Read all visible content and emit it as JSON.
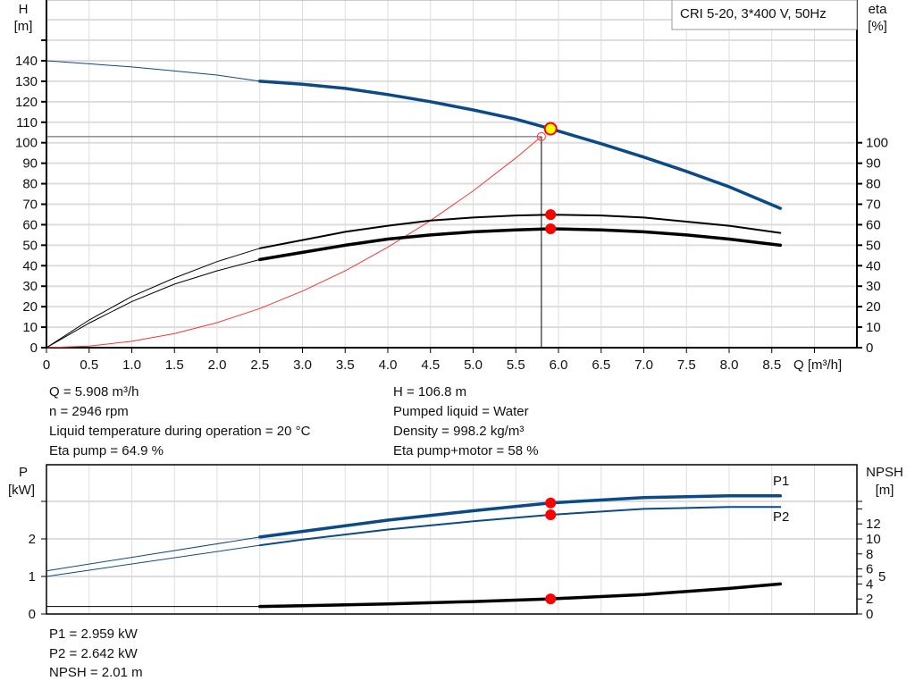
{
  "title_box": "CRI 5-20, 3*400 V, 50Hz",
  "colors": {
    "head": "#0a4a86",
    "eta": "#000000",
    "system": "#ff3333",
    "point": "#ff0000",
    "duty_point_fill": "#ffff00",
    "power": "#0a4a86",
    "npsh": "#000000",
    "grid": "#dddddd"
  },
  "info_left": [
    "Q = 5.908 m³/h",
    "n = 2946 rpm",
    "Liquid temperature during operation = 20 °C",
    "Eta pump = 64.9 %"
  ],
  "info_right": [
    "H = 106.8 m",
    "Pumped liquid = Water",
    "Density = 998.2 kg/m³",
    "Eta pump+motor = 58 %"
  ],
  "info_bottom": [
    "P1 = 2.959 kW",
    "P2 = 2.642 kW",
    "NPSH = 2.01 m"
  ],
  "chart_data": [
    {
      "type": "line",
      "xlabel": "Q [m³/h]",
      "ylabel_left": [
        "H",
        "[m]"
      ],
      "ylabel_right": [
        "eta",
        "[%]"
      ],
      "xlim": [
        0,
        9.5
      ],
      "ylim": [
        0,
        170
      ],
      "x_ticks": [
        "0",
        "0.5",
        "1.0",
        "1.5",
        "2.0",
        "2.5",
        "3.0",
        "3.5",
        "4.0",
        "4.5",
        "5.0",
        "5.5",
        "6.0",
        "6.5",
        "7.0",
        "7.5",
        "8.0",
        "8.5"
      ],
      "y_ticks_left": [
        "0",
        "10",
        "20",
        "30",
        "40",
        "50",
        "60",
        "70",
        "80",
        "90",
        "100",
        "110",
        "120",
        "130",
        "140"
      ],
      "y_ticks_right": [
        "0",
        "10",
        "20",
        "30",
        "40",
        "50",
        "60",
        "70",
        "80",
        "90",
        "100"
      ],
      "grid": true,
      "series": [
        {
          "key": "H",
          "x": [
            0,
            0.5,
            1,
            1.5,
            2,
            2.5,
            3,
            3.5,
            4,
            4.5,
            5,
            5.5,
            5.908,
            6.5,
            7,
            7.5,
            8,
            8.6
          ],
          "y": [
            140,
            138.5,
            137,
            135,
            133,
            130,
            128.5,
            126.5,
            123.5,
            120,
            116,
            111.5,
            106.8,
            99.5,
            93,
            86,
            78.5,
            68
          ],
          "thin_until": 2.5
        },
        {
          "key": "eta_pump",
          "x": [
            0,
            0.5,
            1,
            1.5,
            2,
            2.5,
            3,
            3.5,
            4,
            4.5,
            5,
            5.5,
            5.908,
            6.5,
            7,
            7.5,
            8,
            8.6
          ],
          "y": [
            0,
            13.5,
            25,
            34,
            42,
            48.5,
            52.5,
            56.5,
            59.5,
            62,
            63.5,
            64.5,
            64.9,
            64.5,
            63.5,
            61.5,
            59.5,
            56
          ],
          "thin_until": 2.5
        },
        {
          "key": "eta_pump_motor",
          "x": [
            0,
            0.5,
            1,
            1.5,
            2,
            2.5,
            3,
            3.5,
            4,
            4.5,
            5,
            5.5,
            5.908,
            6.5,
            7,
            7.5,
            8,
            8.6
          ],
          "y": [
            0,
            12,
            22.5,
            31,
            37.5,
            43,
            46.5,
            50,
            53,
            55,
            56.5,
            57.5,
            58,
            57.5,
            56.5,
            55,
            53,
            50
          ],
          "thin_until": 2.5
        },
        {
          "key": "system",
          "x": [
            0,
            0.5,
            1,
            1.5,
            2,
            2.5,
            3,
            3.5,
            4,
            4.5,
            5,
            5.5,
            5.8
          ],
          "y": [
            0,
            0.8,
            3.1,
            6.9,
            12.2,
            19.1,
            27.6,
            37.5,
            49,
            62,
            76.5,
            92.6,
            103
          ]
        }
      ],
      "duty_point": {
        "x": 5.908,
        "y": 106.8
      },
      "system_point": {
        "x": 5.8,
        "y": 103
      },
      "eta_points": [
        {
          "x": 5.908,
          "y": 64.9
        },
        {
          "x": 5.908,
          "y": 58
        }
      ]
    },
    {
      "type": "line",
      "ylabel_left": [
        "P",
        "[kW]"
      ],
      "ylabel_right": [
        "NPSH",
        "[m]"
      ],
      "xlim": [
        0,
        9.5
      ],
      "ylim": [
        0,
        4
      ],
      "y_ticks_left": [
        "0",
        "1",
        "2"
      ],
      "y_ticks_right": [
        "0",
        "2",
        "4",
        "5",
        "6",
        "8",
        "10",
        "12"
      ],
      "grid": true,
      "series": [
        {
          "name": "P1",
          "x": [
            0,
            2.5,
            3,
            4,
            5,
            5.908,
            7,
            8,
            8.6
          ],
          "y": [
            1.15,
            2.05,
            2.2,
            2.5,
            2.75,
            2.959,
            3.1,
            3.15,
            3.15
          ],
          "thin_until": 2.5
        },
        {
          "name": "P2",
          "x": [
            0,
            2.5,
            3,
            4,
            5,
            5.908,
            7,
            8,
            8.6
          ],
          "y": [
            1.0,
            1.83,
            1.98,
            2.25,
            2.47,
            2.642,
            2.8,
            2.85,
            2.85
          ],
          "thin_until": 2.5
        },
        {
          "key": "NPSH",
          "unit": "m",
          "x": [
            0,
            2.5,
            3,
            4,
            5,
            5.908,
            7,
            8,
            8.6
          ],
          "y": [
            1.0,
            1.0,
            1.1,
            1.35,
            1.65,
            2.01,
            2.6,
            3.4,
            4.0
          ]
        }
      ],
      "points": [
        {
          "x": 5.908,
          "p": 2.959
        },
        {
          "x": 5.908,
          "p": 2.642
        },
        {
          "x": 5.908,
          "npsh": 2.01
        }
      ]
    }
  ]
}
